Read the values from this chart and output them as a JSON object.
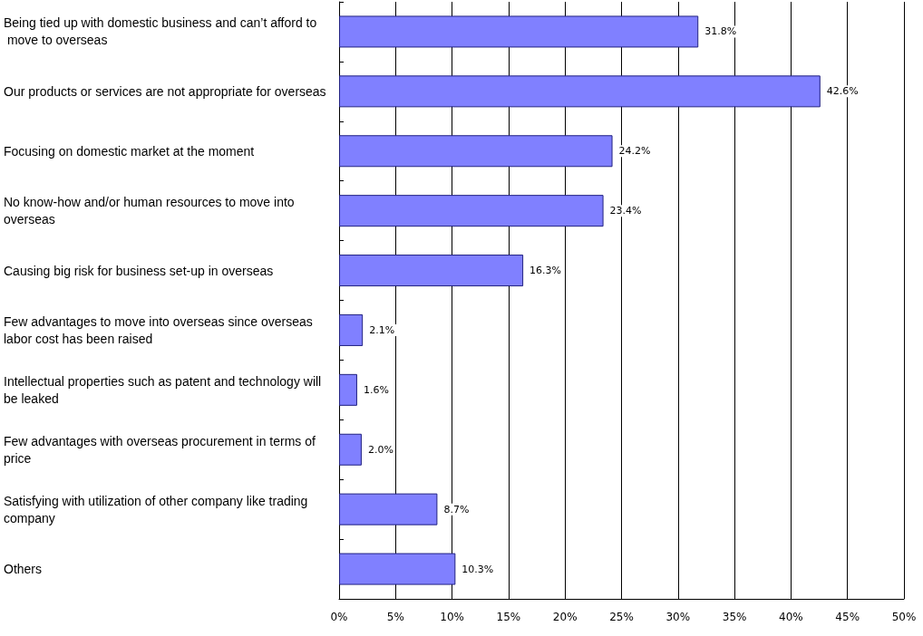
{
  "chart_data": {
    "type": "bar",
    "orientation": "horizontal",
    "categories": [
      "Being tied up with domestic business and can’t afford to move to overseas",
      "Our products or services are not appropriate for overseas",
      "Focusing on domestic market at the moment",
      "No know-how and/or human resources to move into overseas",
      "Causing big risk for business set-up in overseas",
      "Few advantages to move into overseas since overseas labor cost has been raised",
      "Intellectual properties such as patent and technology will be leaked",
      "Few advantages with overseas procurement in terms of price",
      "Satisfying with utilization of other company like trading company",
      "Others"
    ],
    "values": [
      31.8,
      42.6,
      24.2,
      23.4,
      16.3,
      2.1,
      1.6,
      2.0,
      8.7,
      10.3
    ],
    "value_labels": [
      "31.8%",
      "42.6%",
      "24.2%",
      "23.4%",
      "16.3%",
      "2.1%",
      "1.6%",
      "2.0%",
      "8.7%",
      "10.3%"
    ],
    "color": "#8080ff",
    "xlim": [
      0,
      50
    ],
    "xticks": [
      {
        "value": 0,
        "label": "0%"
      },
      {
        "value": 5,
        "label": "5%"
      },
      {
        "value": 10,
        "label": "10%"
      },
      {
        "value": 15,
        "label": "15%"
      },
      {
        "value": 20,
        "label": "20%"
      },
      {
        "value": 25,
        "label": "25%"
      },
      {
        "value": 30,
        "label": "30%"
      },
      {
        "value": 35,
        "label": "35%"
      },
      {
        "value": 40,
        "label": "40%"
      },
      {
        "value": 45,
        "label": "45%"
      },
      {
        "value": 50,
        "label": "50%"
      }
    ],
    "grid": "x"
  }
}
